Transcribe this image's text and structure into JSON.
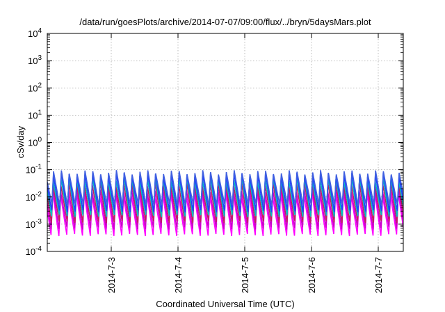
{
  "chart_data": {
    "type": "line",
    "title": "/data/run/goesPlots/archive/2014-07-07/09:00/flux/../bryn/5daysMars.plot",
    "xlabel": "Coordinated Universal Time (UTC)",
    "ylabel": "cSv/day",
    "x_range": [
      "2014-07-02T01:00",
      "2014-07-07T09:00"
    ],
    "x_ticks": [
      "2014-7-3",
      "2014-7-4",
      "2014-7-5",
      "2014-7-6",
      "2014-7-7"
    ],
    "y_scale": "log",
    "ylim": [
      0.0001,
      10000
    ],
    "y_ticks": [
      {
        "base": "10",
        "exp": "-4"
      },
      {
        "base": "10",
        "exp": "-3"
      },
      {
        "base": "10",
        "exp": "-2"
      },
      {
        "base": "10",
        "exp": "-1"
      },
      {
        "base": "10",
        "exp": "0"
      },
      {
        "base": "10",
        "exp": "1"
      },
      {
        "base": "10",
        "exp": "2"
      },
      {
        "base": "10",
        "exp": "3"
      },
      {
        "base": "10",
        "exp": "4"
      }
    ],
    "grid": true,
    "cycles_per_day": 8.5,
    "series": [
      {
        "color": "#ff00ff",
        "max": 0.012,
        "min": 0.0004
      },
      {
        "color": "#cc00cc",
        "max": 0.018,
        "min": 0.0007
      },
      {
        "color": "#c02060",
        "max": 0.03,
        "min": 0.0012
      },
      {
        "color": "#00c0c0",
        "max": 0.045,
        "min": 0.002
      },
      {
        "color": "#2040ff",
        "max": 0.065,
        "min": 0.003
      },
      {
        "color": "#4060e0",
        "max": 0.08,
        "min": 0.005
      }
    ]
  }
}
